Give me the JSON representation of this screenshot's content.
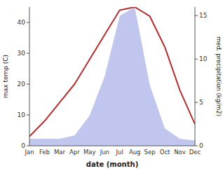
{
  "chart_data": {
    "type": "line",
    "categories": [
      "Jan",
      "Feb",
      "Mar",
      "Apr",
      "May",
      "Jun",
      "Jul",
      "Aug",
      "Sep",
      "Oct",
      "Nov",
      "Dec"
    ],
    "series": [
      {
        "type": "area",
        "axis": "y2",
        "color": "#b0b8e8",
        "values": [
          0.8,
          0.8,
          0.8,
          1.2,
          3.5,
          8,
          15,
          16,
          7,
          2,
          0.8,
          0.6
        ]
      },
      {
        "type": "line",
        "color": "#b03030",
        "values": [
          3,
          8,
          14,
          20,
          28,
          36,
          44,
          45,
          42,
          32,
          18,
          7
        ]
      }
    ],
    "xlabel": "date (month)",
    "ylabel": "max temp (C)",
    "y2label": "med. precipitation (kg/m2)",
    "ylim": [
      0,
      45
    ],
    "yticks": [
      0,
      10,
      20,
      30,
      40
    ],
    "y2lim": [
      0,
      16
    ],
    "y2ticks": [
      0,
      5,
      10,
      15
    ],
    "grid": false
  }
}
